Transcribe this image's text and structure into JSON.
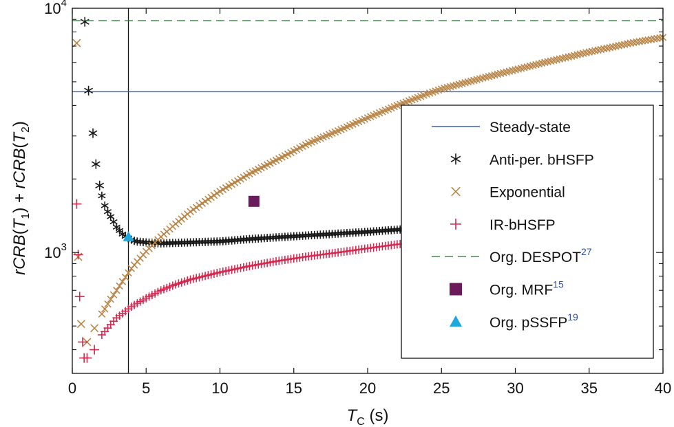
{
  "chart_data": {
    "type": "scatter",
    "yscale": "log",
    "xlim": [
      0,
      40
    ],
    "ylim": [
      320,
      10000
    ],
    "xticks": [
      {
        "value": 0,
        "label": "0"
      },
      {
        "value": 5,
        "label": "5"
      },
      {
        "value": 10,
        "label": "10"
      },
      {
        "value": 15,
        "label": "15"
      },
      {
        "value": 20,
        "label": "20"
      },
      {
        "value": 25,
        "label": "25"
      },
      {
        "value": 30,
        "label": "30"
      },
      {
        "value": 35,
        "label": "35"
      },
      {
        "value": 40,
        "label": "40"
      }
    ],
    "yticks": [
      {
        "value": 1000,
        "base": "10",
        "exp": "3"
      },
      {
        "value": 10000,
        "base": "10",
        "exp": "4"
      }
    ],
    "xlabel": {
      "main": "T",
      "sub": "C",
      "rest": " (s)"
    },
    "ylabel": {
      "p1": "rCRB",
      "p2": "(",
      "p3": "T",
      "p4": "1",
      "p5": ") + ",
      "p6": "rCRB",
      "p7": "(",
      "p8": "T",
      "p9": "2",
      "p10": ")"
    },
    "grid": false,
    "legend_position": "right",
    "vline_x": 3.8,
    "series": [
      {
        "name": "Steady-state",
        "kind": "hline",
        "color": "#3a5fb0",
        "y": 4550
      },
      {
        "name": "Anti-per. bHSFP",
        "kind": "curve",
        "marker": "asterisk",
        "color": "#1a1a1a",
        "knots": [
          [
            0.85,
            8800
          ],
          [
            1.1,
            4600
          ],
          [
            1.4,
            3080
          ],
          [
            1.6,
            2300
          ],
          [
            1.85,
            1880
          ],
          [
            2.1,
            1600
          ],
          [
            2.4,
            1470
          ],
          [
            2.7,
            1370
          ],
          [
            3.0,
            1270
          ],
          [
            3.4,
            1190
          ],
          [
            3.8,
            1140
          ],
          [
            4.3,
            1110
          ],
          [
            5.0,
            1100
          ],
          [
            6.0,
            1090
          ],
          [
            8.0,
            1100
          ],
          [
            10.0,
            1110
          ],
          [
            12.0,
            1135
          ],
          [
            15.0,
            1165
          ],
          [
            18.0,
            1195
          ],
          [
            20.0,
            1215
          ],
          [
            22.0,
            1240
          ],
          [
            23.0,
            1250
          ]
        ]
      },
      {
        "name": "Exponential",
        "kind": "curve",
        "marker": "x",
        "color": "#b88548",
        "knots": [
          [
            0.3,
            7200
          ],
          [
            0.4,
            960
          ],
          [
            0.6,
            510
          ],
          [
            1.0,
            430
          ],
          [
            1.5,
            490
          ],
          [
            2.0,
            560
          ],
          [
            2.5,
            630
          ],
          [
            3.0,
            700
          ],
          [
            4.0,
            860
          ],
          [
            5.0,
            1010
          ],
          [
            6.0,
            1160
          ],
          [
            7.0,
            1310
          ],
          [
            8.0,
            1470
          ],
          [
            9.0,
            1620
          ],
          [
            10.0,
            1780
          ],
          [
            12.0,
            2100
          ],
          [
            14.0,
            2420
          ],
          [
            16.0,
            2800
          ],
          [
            18.0,
            3150
          ],
          [
            20.0,
            3560
          ],
          [
            22.0,
            4000
          ],
          [
            24.0,
            4450
          ],
          [
            25.0,
            4670
          ],
          [
            28.0,
            5220
          ],
          [
            30.0,
            5600
          ],
          [
            32.0,
            6000
          ],
          [
            35.0,
            6620
          ],
          [
            38.0,
            7240
          ],
          [
            40.0,
            7600
          ]
        ]
      },
      {
        "name": "IR-bHSFP",
        "kind": "curve",
        "marker": "plus",
        "color": "#d4284f",
        "knots": [
          [
            0.3,
            1580
          ],
          [
            0.4,
            980
          ],
          [
            0.5,
            660
          ],
          [
            0.7,
            430
          ],
          [
            0.8,
            370
          ],
          [
            1.0,
            370
          ],
          [
            1.5,
            400
          ],
          [
            2.0,
            460
          ],
          [
            3.0,
            540
          ],
          [
            4.0,
            600
          ],
          [
            5.0,
            650
          ],
          [
            6.0,
            700
          ],
          [
            7.0,
            740
          ],
          [
            8.0,
            775
          ],
          [
            10.0,
            830
          ],
          [
            12.0,
            880
          ],
          [
            14.0,
            925
          ],
          [
            16.0,
            965
          ],
          [
            18.0,
            1000
          ],
          [
            20.0,
            1040
          ],
          [
            22.0,
            1080
          ],
          [
            23.0,
            1095
          ]
        ]
      },
      {
        "name": "Org. DESPOT",
        "name_sup": "27",
        "kind": "hline",
        "dashed": true,
        "color": "#2e8b3a",
        "y": 8900
      },
      {
        "name": "Org.  MRF",
        "name_sup": "15",
        "kind": "point",
        "marker": "square",
        "color": "#6b1a5c",
        "x": 12.3,
        "y": 1620
      },
      {
        "name": "Org. pSSFP",
        "name_sup": "19",
        "kind": "point",
        "marker": "triangle",
        "color": "#1ea8dc",
        "x": 3.8,
        "y": 1160
      }
    ]
  }
}
